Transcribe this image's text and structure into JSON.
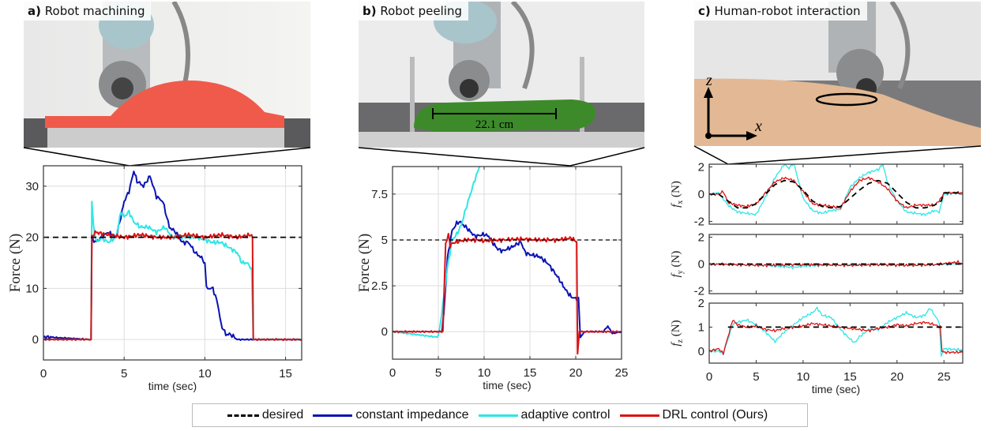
{
  "panels": [
    {
      "letter": "a)",
      "title": "Robot machining"
    },
    {
      "letter": "b)",
      "title": "Robot peeling",
      "annotation": "22.1 cm"
    },
    {
      "letter": "c)",
      "title": "Human-robot interaction",
      "axis_z": "z",
      "axis_x": "x"
    }
  ],
  "legend": [
    {
      "label": "desired",
      "color": "#000000",
      "style": "dashed"
    },
    {
      "label": "constant impedance",
      "color": "#0a14b4",
      "style": "solid"
    },
    {
      "label": "adaptive control",
      "color": "#2ee6e6",
      "style": "solid"
    },
    {
      "label": "DRL control (Ours)",
      "color": "#dd1111",
      "style": "solid"
    }
  ],
  "chart_data": [
    {
      "id": "a",
      "type": "line",
      "title": "Robot machining",
      "xlabel": "time (sec)",
      "ylabel": "Force (N)",
      "xlim": [
        0,
        16
      ],
      "ylim": [
        -4,
        34
      ],
      "xticks": [
        0,
        5,
        10,
        15
      ],
      "yticks": [
        0,
        10,
        20,
        30
      ],
      "grid": true,
      "series": [
        {
          "name": "desired",
          "x": [
            0,
            16
          ],
          "y": [
            20,
            20
          ]
        },
        {
          "name": "constant impedance",
          "x": [
            0,
            2.95,
            3.0,
            3.2,
            3.6,
            4.0,
            4.5,
            4.8,
            5.0,
            5.3,
            5.6,
            5.8,
            6.2,
            6.6,
            7.0,
            7.4,
            7.8,
            8.2,
            8.6,
            9.0,
            9.4,
            9.8,
            10.0,
            10.1,
            10.5,
            10.8,
            11.0,
            11.3,
            11.6,
            12,
            13,
            14,
            16
          ],
          "y": [
            0.5,
            0,
            20,
            19,
            20,
            21,
            20,
            24,
            27,
            29,
            33,
            31,
            30,
            32,
            28,
            27,
            22,
            21,
            19,
            19,
            17,
            16,
            15,
            10,
            10,
            7,
            3,
            1,
            1,
            0,
            0,
            0,
            0
          ]
        },
        {
          "name": "adaptive control",
          "x": [
            0,
            2.95,
            3.0,
            3.1,
            3.3,
            3.6,
            4.0,
            4.5,
            4.8,
            5.0,
            5.3,
            5.6,
            6.0,
            6.5,
            7.0,
            7.5,
            8.0,
            8.5,
            9.0,
            9.5,
            10,
            10.5,
            11,
            11.5,
            12,
            12.3,
            12.6,
            12.9,
            13,
            14,
            16
          ],
          "y": [
            0,
            0,
            27,
            22,
            19,
            20,
            19,
            20,
            25,
            24,
            25,
            23,
            22,
            22,
            21,
            22,
            20,
            20,
            20,
            20,
            19.5,
            19,
            19,
            18,
            17,
            15,
            15,
            14,
            0,
            0,
            0
          ]
        },
        {
          "name": "DRL control (Ours)",
          "x": [
            0,
            2.95,
            3.0,
            3.2,
            4,
            5,
            6,
            7,
            8,
            9,
            10,
            11,
            12,
            12.9,
            12.95,
            13,
            16
          ],
          "y": [
            0,
            0,
            20,
            21,
            20.5,
            20,
            20.5,
            20,
            20,
            20.5,
            20,
            20.5,
            20,
            20.5,
            20,
            0,
            0
          ]
        }
      ]
    },
    {
      "id": "b",
      "type": "line",
      "title": "Robot peeling",
      "xlabel": "time (sec)",
      "ylabel": "Force (N)",
      "xlim": [
        0,
        25
      ],
      "ylim": [
        -1.5,
        9
      ],
      "xticks": [
        0,
        5,
        10,
        15,
        20,
        25
      ],
      "yticks": [
        0,
        2.5,
        5,
        7.5
      ],
      "grid": true,
      "series": [
        {
          "name": "desired",
          "x": [
            0,
            25
          ],
          "y": [
            5,
            5
          ]
        },
        {
          "name": "constant impedance",
          "x": [
            0,
            5.4,
            5.6,
            6.0,
            6.5,
            7.0,
            7.3,
            8,
            9,
            10,
            10.5,
            11,
            11.5,
            12,
            13,
            14,
            14.5,
            15,
            16,
            17,
            18,
            19,
            19.5,
            20,
            20.3,
            20.5,
            21,
            23,
            23.5,
            24,
            25
          ],
          "y": [
            0,
            0,
            1,
            4,
            5.5,
            5.9,
            6,
            5.7,
            5.2,
            5.3,
            5.2,
            4.8,
            4.5,
            4.4,
            4.6,
            4.9,
            4.3,
            4.2,
            4.1,
            3.7,
            3,
            2.2,
            1.9,
            1.8,
            1.8,
            -0.3,
            0,
            0,
            0.3,
            -0.1,
            0
          ]
        },
        {
          "name": "adaptive control",
          "x": [
            0,
            4.9,
            5.1,
            5.5,
            6,
            6.5,
            7,
            7.5,
            8,
            8.5,
            9,
            9.5
          ],
          "y": [
            0,
            -0.3,
            0,
            1.5,
            3.5,
            5,
            5.3,
            5.8,
            6.7,
            7.5,
            8.3,
            9
          ]
        },
        {
          "name": "DRL control (Ours)",
          "x": [
            0,
            5.5,
            5.8,
            6.1,
            6.3,
            6.5,
            7,
            8,
            9,
            10,
            12,
            14,
            16,
            18,
            19.5,
            20.1,
            20.2,
            20.4,
            20.6,
            21,
            25
          ],
          "y": [
            0,
            0,
            4.8,
            5.3,
            4.7,
            4.8,
            4.9,
            5.0,
            5.0,
            4.95,
            5.0,
            5.05,
            5.0,
            5.0,
            5.1,
            4.9,
            -1.2,
            0,
            0,
            0,
            0
          ]
        }
      ]
    },
    {
      "id": "c-fx",
      "type": "line",
      "title": "Human-robot interaction",
      "xlabel": "",
      "ylabel": "f_x (N)",
      "xlim": [
        0,
        27
      ],
      "ylim": [
        -2.2,
        2.2
      ],
      "xticks": [
        0,
        5,
        10,
        15,
        20,
        25
      ],
      "yticks": [
        -2,
        0,
        2
      ],
      "grid": false,
      "series": [
        {
          "name": "desired",
          "x": [
            0,
            1,
            2,
            3,
            4,
            5,
            6,
            7,
            8,
            9,
            10,
            11,
            12,
            13,
            14,
            15,
            16,
            17,
            18,
            19,
            20,
            21,
            22,
            23,
            24,
            24.7,
            25,
            27
          ],
          "y": [
            0,
            0,
            -0.5,
            -1,
            -1,
            -0.7,
            0,
            0.7,
            1,
            0.9,
            0.3,
            -0.5,
            -0.9,
            -1,
            -0.9,
            -0.3,
            0.3,
            0.8,
            1,
            0.8,
            0.1,
            -0.6,
            -1,
            -1,
            -0.8,
            -0.5,
            0.1,
            0.1
          ]
        },
        {
          "name": "adaptive control",
          "x": [
            0,
            1,
            2,
            3,
            4,
            5,
            6,
            7,
            8,
            8.5,
            9,
            9.3,
            10,
            11,
            12,
            13,
            14,
            15,
            16,
            17,
            18,
            18.5,
            19,
            20,
            21,
            22,
            23,
            24,
            24.5,
            25,
            27
          ],
          "y": [
            0,
            0.1,
            -0.8,
            -1.3,
            -1.4,
            -1.5,
            -0.2,
            1.2,
            2.2,
            1.9,
            2.3,
            1.5,
            -0.3,
            -1.2,
            -1.4,
            -1.2,
            -1.1,
            0.5,
            1.2,
            1.6,
            1.8,
            2.2,
            0.8,
            -0.5,
            -1.3,
            -1.4,
            -1.5,
            -1.2,
            -1.3,
            0,
            0.1
          ]
        },
        {
          "name": "DRL control (Ours)",
          "x": [
            0,
            1,
            1.5,
            2,
            3,
            4,
            5,
            6,
            7,
            8,
            9,
            10,
            11,
            12,
            13,
            14,
            15,
            16,
            17,
            18,
            19,
            20,
            21,
            22,
            23,
            24,
            24.6,
            25,
            27
          ],
          "y": [
            0,
            0,
            0.2,
            -0.6,
            -0.8,
            -0.9,
            -0.7,
            0.1,
            0.9,
            1.2,
            1.0,
            0.2,
            -0.7,
            -0.8,
            -0.9,
            -1.0,
            0.2,
            1.0,
            1.2,
            0.9,
            0.4,
            -0.5,
            -1.0,
            -0.8,
            -0.8,
            -0.8,
            -0.4,
            0.1,
            0.1
          ]
        }
      ]
    },
    {
      "id": "c-fy",
      "type": "line",
      "xlabel": "",
      "ylabel": "f_y (N)",
      "xlim": [
        0,
        27
      ],
      "ylim": [
        -2.2,
        2.2
      ],
      "xticks": [
        0,
        5,
        10,
        15,
        20,
        25
      ],
      "yticks": [
        -2,
        0,
        2
      ],
      "grid": false,
      "series": [
        {
          "name": "desired",
          "x": [
            0,
            27
          ],
          "y": [
            0,
            0
          ]
        },
        {
          "name": "adaptive control",
          "x": [
            0,
            3,
            6,
            8,
            9,
            10,
            12,
            15,
            18,
            21,
            24,
            27
          ],
          "y": [
            0,
            -0.05,
            -0.1,
            -0.2,
            -0.25,
            -0.15,
            -0.1,
            -0.05,
            -0.05,
            -0.1,
            -0.05,
            0.05
          ]
        },
        {
          "name": "DRL control (Ours)",
          "x": [
            0,
            3,
            6,
            9,
            12,
            15,
            18,
            21,
            24,
            26.5,
            27
          ],
          "y": [
            0,
            -0.05,
            -0.1,
            -0.05,
            -0.05,
            -0.1,
            -0.05,
            -0.1,
            -0.05,
            0.15,
            0
          ]
        }
      ]
    },
    {
      "id": "c-fz",
      "type": "line",
      "xlabel": "time (sec)",
      "ylabel": "f_z (N)",
      "xlim": [
        0,
        27
      ],
      "ylim": [
        -0.5,
        2
      ],
      "xticks": [
        0,
        5,
        10,
        15,
        20,
        25
      ],
      "yticks": [
        0,
        1,
        2
      ],
      "grid": false,
      "series": [
        {
          "name": "desired",
          "x": [
            2,
            27
          ],
          "y": [
            1,
            1
          ]
        },
        {
          "name": "adaptive control",
          "x": [
            0,
            1,
            1.5,
            2,
            2.5,
            3,
            4,
            5,
            6,
            7,
            8,
            9,
            10,
            11,
            11.5,
            12,
            13,
            14,
            15,
            15.5,
            16,
            17,
            18,
            19,
            20,
            21,
            22,
            23,
            23.5,
            24,
            24.5,
            24.7,
            25,
            27
          ],
          "y": [
            0,
            0,
            -0.1,
            0.5,
            1.1,
            1.2,
            1.3,
            1.1,
            0.8,
            0.4,
            0.8,
            1.1,
            1.4,
            1.6,
            1.8,
            1.5,
            1.4,
            0.9,
            0.5,
            0.35,
            0.6,
            0.9,
            0.9,
            1.2,
            1.4,
            1.6,
            1.4,
            1.5,
            1.8,
            1.5,
            1.2,
            -0.2,
            0.1,
            0.05
          ]
        },
        {
          "name": "DRL control (Ours)",
          "x": [
            0,
            1,
            1.5,
            2,
            2.5,
            3,
            4,
            5,
            6,
            7,
            8,
            9,
            10,
            11,
            12,
            13,
            14,
            15,
            16,
            17,
            18,
            19,
            20,
            21,
            22,
            23,
            24,
            24.6,
            24.8,
            25,
            27
          ],
          "y": [
            0,
            0.1,
            -0.1,
            0.6,
            1.3,
            1.1,
            1.0,
            1.05,
            0.9,
            0.85,
            0.95,
            1.0,
            1.05,
            1.15,
            1.1,
            1.05,
            1.0,
            0.95,
            0.9,
            0.85,
            0.95,
            1.0,
            1.1,
            1.05,
            1.15,
            1.2,
            1.1,
            1.0,
            0,
            -0.05,
            -0.05
          ]
        }
      ]
    }
  ]
}
